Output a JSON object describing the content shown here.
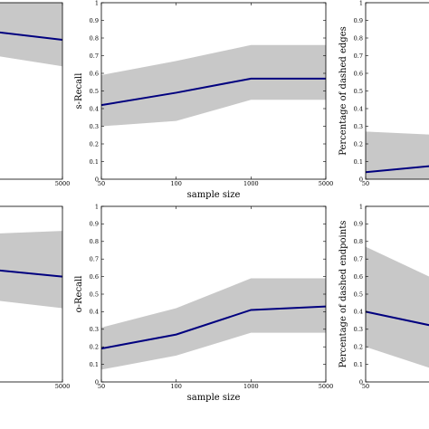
{
  "chart_data": [
    {
      "id": "top-left",
      "type": "line",
      "x": [
        50,
        100,
        1000,
        5000
      ],
      "xticks": [
        "",
        "",
        "",
        "5000"
      ],
      "series": [
        {
          "values": [
            null,
            null,
            0.85,
            0.79
          ],
          "lower": [
            null,
            null,
            0.72,
            0.64
          ],
          "upper": [
            null,
            null,
            1.0,
            1.0
          ]
        }
      ],
      "ylim": [
        0,
        1
      ],
      "xlabel": "",
      "ylabel": "",
      "show_yticks": false
    },
    {
      "id": "top-middle",
      "type": "line",
      "x": [
        50,
        100,
        1000,
        5000
      ],
      "xticks": [
        "50",
        "100",
        "1000",
        "5000"
      ],
      "yticks": [
        "0",
        "0.1",
        "0.2",
        "0.3",
        "0.4",
        "0.5",
        "0.6",
        "0.7",
        "0.8",
        "0.9",
        "1"
      ],
      "series": [
        {
          "values": [
            0.42,
            0.49,
            0.57,
            0.57
          ],
          "lower": [
            0.3,
            0.33,
            0.45,
            0.45
          ],
          "upper": [
            0.59,
            0.67,
            0.76,
            0.76
          ]
        }
      ],
      "ylim": [
        0,
        1
      ],
      "xlabel": "sample size",
      "ylabel": "s-Recall",
      "show_yticks": true
    },
    {
      "id": "top-right",
      "type": "line",
      "x": [
        50,
        100,
        1000,
        5000
      ],
      "xticks": [
        "50",
        "",
        "",
        ""
      ],
      "yticks": [
        "0",
        "0.1",
        "0.2",
        "0.3",
        "0.4",
        "0.5",
        "0.6",
        "0.7",
        "0.8",
        "0.9",
        "1"
      ],
      "series": [
        {
          "values": [
            0.04,
            0.08,
            null,
            null
          ],
          "lower": [
            0.0,
            0.0,
            null,
            null
          ],
          "upper": [
            0.27,
            0.25,
            null,
            null
          ]
        }
      ],
      "ylim": [
        0,
        1
      ],
      "xlabel": "",
      "ylabel": "Percentage of dashed edges",
      "show_yticks": true
    },
    {
      "id": "bottom-left",
      "type": "line",
      "x": [
        50,
        100,
        1000,
        5000
      ],
      "xticks": [
        "",
        "",
        "",
        "5000"
      ],
      "series": [
        {
          "values": [
            null,
            null,
            0.65,
            0.6
          ],
          "lower": [
            null,
            null,
            0.48,
            0.42
          ],
          "upper": [
            null,
            null,
            0.84,
            0.86
          ]
        }
      ],
      "ylim": [
        0,
        1
      ],
      "xlabel": "",
      "ylabel": "",
      "show_yticks": false
    },
    {
      "id": "bottom-middle",
      "type": "line",
      "x": [
        50,
        100,
        1000,
        5000
      ],
      "xticks": [
        "50",
        "100",
        "1000",
        "5000"
      ],
      "yticks": [
        "0",
        "0.1",
        "0.2",
        "0.3",
        "0.4",
        "0.5",
        "0.6",
        "0.7",
        "0.8",
        "0.9",
        "1"
      ],
      "series": [
        {
          "values": [
            0.19,
            0.27,
            0.41,
            0.43
          ],
          "lower": [
            0.07,
            0.15,
            0.28,
            0.28
          ],
          "upper": [
            0.31,
            0.42,
            0.59,
            0.59
          ]
        }
      ],
      "ylim": [
        0,
        1
      ],
      "xlabel": "sample size",
      "ylabel": "o-Recall",
      "show_yticks": true
    },
    {
      "id": "bottom-right",
      "type": "line",
      "x": [
        50,
        100,
        1000,
        5000
      ],
      "xticks": [
        "50",
        "",
        "",
        ""
      ],
      "yticks": [
        "0",
        "0.1",
        "0.2",
        "0.3",
        "0.4",
        "0.5",
        "0.6",
        "0.7",
        "0.8",
        "0.9",
        "1"
      ],
      "series": [
        {
          "values": [
            0.4,
            0.31,
            null,
            null
          ],
          "lower": [
            0.2,
            0.06,
            null,
            null
          ],
          "upper": [
            0.77,
            0.57,
            null,
            null
          ]
        }
      ],
      "ylim": [
        0,
        1
      ],
      "xlabel": "",
      "ylabel": "Percentage of dashed endpoints",
      "show_yticks": true
    }
  ],
  "colors": {
    "line": "#00007f",
    "band": "#c8c8c8"
  }
}
